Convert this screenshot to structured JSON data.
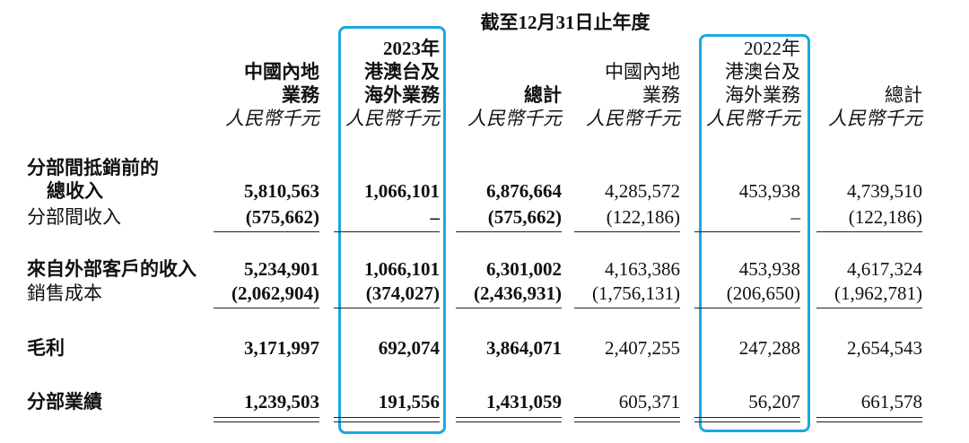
{
  "header": {
    "period": "截至12月31日止年度"
  },
  "columns": [
    {
      "lines": [
        "中國內地",
        "業務"
      ],
      "unit": "人民幣千元"
    },
    {
      "lines": [
        "2023年",
        "港澳台及",
        "海外業務"
      ],
      "unit": "人民幣千元"
    },
    {
      "lines": [
        "總計"
      ],
      "unit": "人民幣千元"
    },
    {
      "lines": [
        "中國內地",
        "業務"
      ],
      "unit": "人民幣千元"
    },
    {
      "lines": [
        "2022年",
        "港澳台及",
        "海外業務"
      ],
      "unit": "人民幣千元"
    },
    {
      "lines": [
        "總計"
      ],
      "unit": "人民幣千元"
    }
  ],
  "rows": [
    {
      "label": [
        "分部間抵銷前的",
        "總收入"
      ],
      "values": [
        "5,810,563",
        "1,066,101",
        "6,876,664",
        "4,285,572",
        "453,938",
        "4,739,510"
      ]
    },
    {
      "label": [
        "分部間收入"
      ],
      "values": [
        "(575,662)",
        "–",
        "(575,662)",
        "(122,186)",
        "–",
        "(122,186)"
      ]
    },
    {
      "label": [
        "來自外部客戶的收入"
      ],
      "values": [
        "5,234,901",
        "1,066,101",
        "6,301,002",
        "4,163,386",
        "453,938",
        "4,617,324"
      ]
    },
    {
      "label": [
        "銷售成本"
      ],
      "values": [
        "(2,062,904)",
        "(374,027)",
        "(2,436,931)",
        "(1,756,131)",
        "(206,650)",
        "(1,962,781)"
      ]
    },
    {
      "label": [
        "毛利"
      ],
      "values": [
        "3,171,997",
        "692,074",
        "3,864,071",
        "2,407,255",
        "247,288",
        "2,654,543"
      ]
    },
    {
      "label": [
        "分部業績"
      ],
      "values": [
        "1,239,503",
        "191,556",
        "1,431,059",
        "605,371",
        "56,207",
        "661,578"
      ]
    }
  ]
}
